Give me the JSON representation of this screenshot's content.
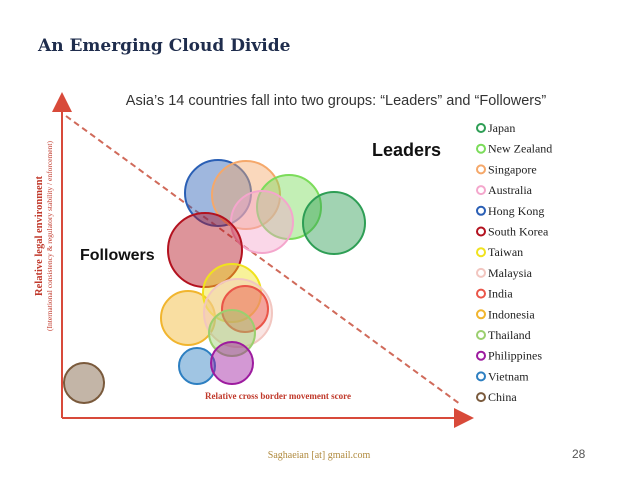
{
  "slide": {
    "title": "An Emerging Cloud Divide",
    "footer_email": "Saghaeian [at] gmail.com",
    "page_number": "28"
  },
  "chart_data": {
    "type": "bubble",
    "title": "Asia’s 14 countries fall into two groups: “Leaders” and “Followers”",
    "xlabel": "Relative cross border movement score",
    "ylabel": "Relative legal environment",
    "ylabel_sub": "(International consistency & regulatory stability / enforcement)",
    "group_labels": {
      "leaders": "Leaders",
      "followers": "Followers"
    },
    "legend_position": "right",
    "grid": false,
    "series": [
      {
        "name": "Japan",
        "color": "#2e9e55"
      },
      {
        "name": "New Zealand",
        "color": "#7bdc5a"
      },
      {
        "name": "Singapore",
        "color": "#f5a86a"
      },
      {
        "name": "Australia",
        "color": "#f4a6cc"
      },
      {
        "name": "Hong Kong",
        "color": "#2a5fb5"
      },
      {
        "name": "South Korea",
        "color": "#b3121f"
      },
      {
        "name": "Taiwan",
        "color": "#f0e21e"
      },
      {
        "name": "Malaysia",
        "color": "#f2c6c0"
      },
      {
        "name": "India",
        "color": "#ea5548"
      },
      {
        "name": "Indonesia",
        "color": "#f1b52e"
      },
      {
        "name": "Thailand",
        "color": "#9bcf6f"
      },
      {
        "name": "Philippines",
        "color": "#9d1b9f"
      },
      {
        "name": "Vietnam",
        "color": "#2d7fc1"
      },
      {
        "name": "China",
        "color": "#7a5a3c"
      }
    ]
  }
}
